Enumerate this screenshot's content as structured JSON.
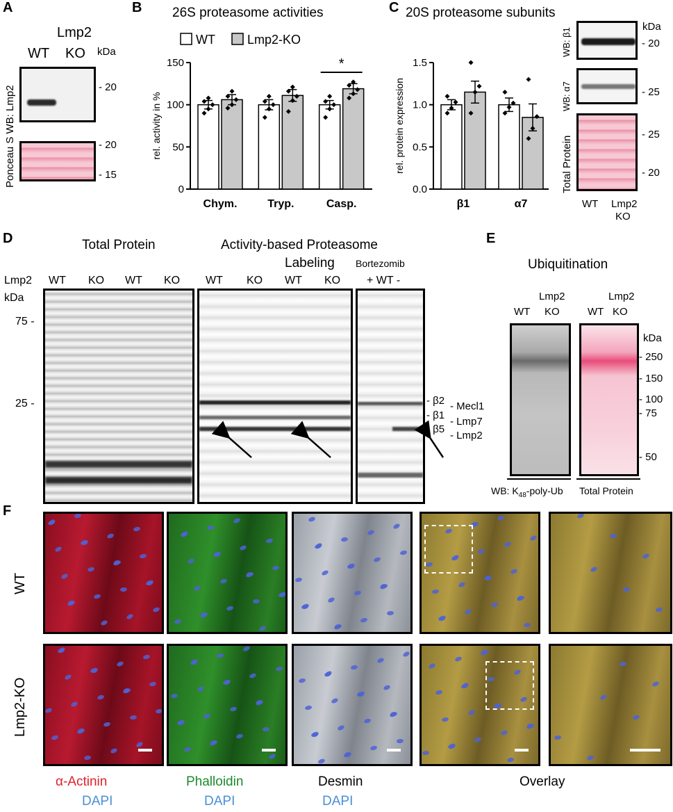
{
  "panels": {
    "a": "A",
    "b": "B",
    "c": "C",
    "d": "D",
    "e": "E",
    "f": "F"
  },
  "panel_a": {
    "lmp2": "Lmp2",
    "wt": "WT",
    "ko": "KO",
    "kda": "kDa",
    "wb_label": "WB: Lmp2",
    "ponceau_label": "Ponceau S",
    "mw_top": "- 20",
    "mw_mid": "- 20",
    "mw_bot": "- 15"
  },
  "chart_data": [
    {
      "type": "bar",
      "title": "26S proteasome activities",
      "categories": [
        "Chym.",
        "Tryp.",
        "Casp."
      ],
      "series": [
        {
          "name": "WT",
          "values": [
            100,
            100,
            100
          ],
          "errors": [
            5,
            6,
            5
          ],
          "color": "#ffffff",
          "points": [
            [
              90,
              95,
              100,
              104,
              108
            ],
            [
              85,
              95,
              100,
              104,
              110
            ],
            [
              85,
              95,
              100,
              104,
              110
            ]
          ]
        },
        {
          "name": "Lmp2-KO",
          "values": [
            106,
            111,
            119
          ],
          "errors": [
            6,
            7,
            6
          ],
          "color": "#c8c8c8",
          "points": [
            [
              96,
              100,
              106,
              110,
              116
            ],
            [
              92,
              105,
              110,
              116,
              121
            ],
            [
              108,
              113,
              118,
              123,
              127
            ]
          ]
        }
      ],
      "ylabel": "rel. activity in %",
      "ylim": [
        0,
        150
      ],
      "yticks": [
        0,
        50,
        100,
        150
      ],
      "significance": "*"
    },
    {
      "type": "bar",
      "title": "20S proteasome subunits",
      "categories": [
        "β1",
        "α7"
      ],
      "series": [
        {
          "name": "WT",
          "values": [
            1.0,
            1.0
          ],
          "errors": [
            0.06,
            0.08
          ],
          "color": "#ffffff",
          "points": [
            [
              0.9,
              0.96,
              1.03,
              1.1
            ],
            [
              0.9,
              0.97,
              1.02,
              1.15
            ]
          ]
        },
        {
          "name": "Lmp2-KO",
          "values": [
            1.15,
            0.85
          ],
          "errors": [
            0.13,
            0.16
          ],
          "color": "#c8c8c8",
          "points": [
            [
              0.9,
              1.15,
              1.22,
              1.5
            ],
            [
              0.6,
              0.72,
              0.86,
              1.3
            ]
          ]
        }
      ],
      "ylabel": "rel. protein expression",
      "ylim": [
        0,
        1.5
      ],
      "yticks": [
        "0.0",
        "0.5",
        "1.0",
        "1.5"
      ]
    }
  ],
  "panel_c": {
    "kda": "kDa",
    "wb_b1": "WB: β1",
    "wb_a7": "WB: α7",
    "total": "Total Protein",
    "mw_b1": "- 20",
    "mw_a7": "- 25",
    "mw_tp1": "- 25",
    "mw_tp2": "- 20",
    "wt": "WT",
    "lmp2": "Lmp2",
    "ko": "KO"
  },
  "panel_d": {
    "title_total": "Total Protein",
    "title_abp": "Activity-based Proteasome",
    "title_abp2": "Labeling",
    "bortezomib": "Bortezomib",
    "bort_lanes": "+ WT -",
    "lmp2": "Lmp2",
    "lanes": [
      "WT",
      "KO",
      "WT",
      "KO"
    ],
    "lanes_abp": [
      "WT",
      "KO",
      "WT",
      "KO"
    ],
    "kda": "kDa",
    "mw75": "75 -",
    "mw25": "25 -",
    "bands": {
      "b2": "- β2",
      "mecl1": "- Mecl1",
      "b1": "- β1",
      "lmp7": "- Lmp7",
      "b5": "- β5",
      "lmp2": "- Lmp2"
    }
  },
  "panel_e": {
    "title": "Ubiquitination",
    "wt": "WT",
    "lmp2": "Lmp2",
    "ko": "KO",
    "kda": "kDa",
    "mw": [
      "- 250",
      "- 150",
      "- 100",
      "- 75",
      "- 50"
    ],
    "wb_prefix": "WB: K",
    "wb_sub": "48",
    "wb_suffix": "-poly-Ub",
    "total": "Total Protein"
  },
  "panel_f": {
    "row_wt": "WT",
    "row_ko": "Lmp2-KO",
    "cols": [
      {
        "name": "α-Actinin",
        "dapi": "DAPI",
        "color": "#e0202a"
      },
      {
        "name": "Phalloidin",
        "dapi": "DAPI",
        "color": "#1c8a2e"
      },
      {
        "name": "Desmin",
        "dapi": "DAPI",
        "color": "#000000"
      },
      {
        "name": "Overlay",
        "dapi": "",
        "color": "#000000"
      }
    ],
    "dapi_color": "#4a8fd6"
  }
}
